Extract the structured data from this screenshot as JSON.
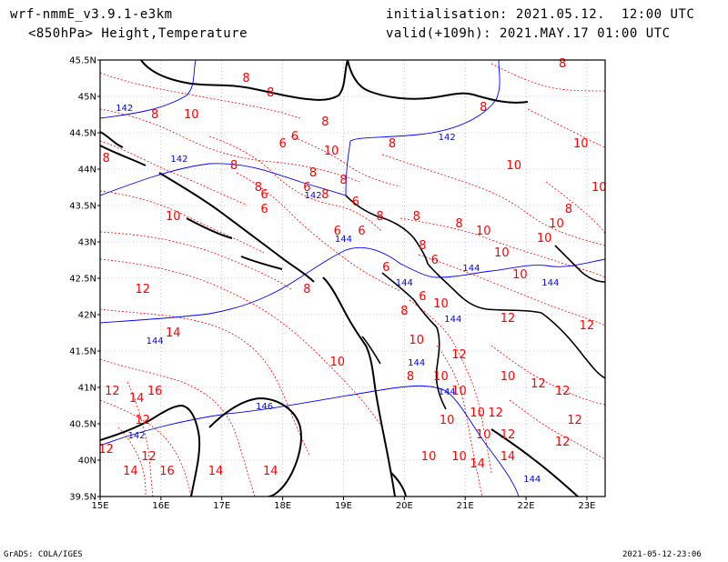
{
  "header": {
    "model": "wrf-nmmE_v3.9.1-e3km",
    "field": "<850hPa> Height,Temperature",
    "init": "initialisation: 2021.05.12.  12:00 UTC",
    "valid": "valid(+109h): 2021.MAY.17 01:00 UTC"
  },
  "footer": {
    "left": "GrADS: COLA/IGES",
    "right": "2021-05-12-23:06"
  },
  "map": {
    "lon_labels": [
      "15E",
      "16E",
      "17E",
      "18E",
      "19E",
      "20E",
      "21E",
      "22E",
      "23E"
    ],
    "lat_labels": [
      "45.5N",
      "45N",
      "44.5N",
      "44N",
      "43.5N",
      "43N",
      "42.5N",
      "42N",
      "41.5N",
      "41N",
      "40.5N",
      "40N",
      "39.5N"
    ],
    "lon_range": [
      15,
      23.3
    ],
    "lat_range": [
      39.5,
      45.5
    ],
    "grid": true,
    "colors": {
      "coast": "#000000",
      "height_contour": "#0000ff",
      "temperature_contour": "#ff0000",
      "grid": "#999999"
    },
    "height_labels": [
      {
        "text": "142",
        "lon": 15.4,
        "lat": 44.8
      },
      {
        "text": "142",
        "lon": 20.7,
        "lat": 44.4
      },
      {
        "text": "142",
        "lon": 16.3,
        "lat": 44.1
      },
      {
        "text": "142",
        "lon": 18.5,
        "lat": 43.6
      },
      {
        "text": "144",
        "lon": 19.0,
        "lat": 43.0
      },
      {
        "text": "144",
        "lon": 21.1,
        "lat": 42.6
      },
      {
        "text": "144",
        "lon": 22.4,
        "lat": 42.4
      },
      {
        "text": "144",
        "lon": 20.0,
        "lat": 42.4
      },
      {
        "text": "144",
        "lon": 20.8,
        "lat": 41.9
      },
      {
        "text": "144",
        "lon": 15.9,
        "lat": 41.6
      },
      {
        "text": "146",
        "lon": 17.7,
        "lat": 40.7
      },
      {
        "text": "144",
        "lon": 20.7,
        "lat": 40.9
      },
      {
        "text": "144",
        "lon": 22.1,
        "lat": 39.7
      },
      {
        "text": "142",
        "lon": 15.6,
        "lat": 40.3
      },
      {
        "text": "144",
        "lon": 20.2,
        "lat": 41.3
      }
    ],
    "temperature_labels": [
      {
        "text": "8",
        "lon": 17.4,
        "lat": 45.2
      },
      {
        "text": "8",
        "lon": 17.8,
        "lat": 45.0
      },
      {
        "text": "10",
        "lon": 16.5,
        "lat": 44.7
      },
      {
        "text": "8",
        "lon": 15.9,
        "lat": 44.7
      },
      {
        "text": "8",
        "lon": 18.7,
        "lat": 44.6
      },
      {
        "text": "6",
        "lon": 18.0,
        "lat": 44.3
      },
      {
        "text": "6",
        "lon": 18.2,
        "lat": 44.4
      },
      {
        "text": "10",
        "lon": 18.8,
        "lat": 44.2
      },
      {
        "text": "8",
        "lon": 19.8,
        "lat": 44.3
      },
      {
        "text": "8",
        "lon": 15.1,
        "lat": 44.1
      },
      {
        "text": "8",
        "lon": 17.2,
        "lat": 44.0
      },
      {
        "text": "8",
        "lon": 18.5,
        "lat": 43.9
      },
      {
        "text": "8",
        "lon": 19.0,
        "lat": 43.8
      },
      {
        "text": "6",
        "lon": 18.4,
        "lat": 43.7
      },
      {
        "text": "8",
        "lon": 17.6,
        "lat": 43.7
      },
      {
        "text": "6",
        "lon": 17.7,
        "lat": 43.6
      },
      {
        "text": "8",
        "lon": 18.7,
        "lat": 43.6
      },
      {
        "text": "6",
        "lon": 19.2,
        "lat": 43.5
      },
      {
        "text": "10",
        "lon": 16.2,
        "lat": 43.3
      },
      {
        "text": "8",
        "lon": 19.6,
        "lat": 43.3
      },
      {
        "text": "6",
        "lon": 17.7,
        "lat": 43.4
      },
      {
        "text": "6",
        "lon": 18.9,
        "lat": 43.1
      },
      {
        "text": "6",
        "lon": 19.3,
        "lat": 43.1
      },
      {
        "text": "8",
        "lon": 20.2,
        "lat": 43.3
      },
      {
        "text": "10",
        "lon": 21.3,
        "lat": 43.1
      },
      {
        "text": "8",
        "lon": 20.9,
        "lat": 43.2
      },
      {
        "text": "10",
        "lon": 21.6,
        "lat": 42.8
      },
      {
        "text": "10",
        "lon": 22.3,
        "lat": 43.0
      },
      {
        "text": "8",
        "lon": 20.3,
        "lat": 42.9
      },
      {
        "text": "6",
        "lon": 20.5,
        "lat": 42.7
      },
      {
        "text": "12",
        "lon": 15.7,
        "lat": 42.3
      },
      {
        "text": "8",
        "lon": 18.4,
        "lat": 42.3
      },
      {
        "text": "6",
        "lon": 19.7,
        "lat": 42.6
      },
      {
        "text": "6",
        "lon": 20.3,
        "lat": 42.2
      },
      {
        "text": "10",
        "lon": 21.9,
        "lat": 42.5
      },
      {
        "text": "10",
        "lon": 20.6,
        "lat": 42.1
      },
      {
        "text": "8",
        "lon": 20.0,
        "lat": 42.0
      },
      {
        "text": "12",
        "lon": 21.7,
        "lat": 41.9
      },
      {
        "text": "14",
        "lon": 16.2,
        "lat": 41.7
      },
      {
        "text": "10",
        "lon": 18.9,
        "lat": 41.3
      },
      {
        "text": "12",
        "lon": 20.9,
        "lat": 41.4
      },
      {
        "text": "10",
        "lon": 21.7,
        "lat": 41.1
      },
      {
        "text": "12",
        "lon": 15.2,
        "lat": 40.9
      },
      {
        "text": "14",
        "lon": 15.6,
        "lat": 40.8
      },
      {
        "text": "16",
        "lon": 15.9,
        "lat": 40.9
      },
      {
        "text": "12",
        "lon": 15.7,
        "lat": 40.5
      },
      {
        "text": "12",
        "lon": 15.8,
        "lat": 40.0
      },
      {
        "text": "16",
        "lon": 16.1,
        "lat": 39.8
      },
      {
        "text": "14",
        "lon": 15.5,
        "lat": 39.8
      },
      {
        "text": "14",
        "lon": 16.9,
        "lat": 39.8
      },
      {
        "text": "14",
        "lon": 17.8,
        "lat": 39.8
      },
      {
        "text": "10",
        "lon": 20.4,
        "lat": 40.0
      },
      {
        "text": "10",
        "lon": 20.9,
        "lat": 40.0
      },
      {
        "text": "10",
        "lon": 21.3,
        "lat": 40.3
      },
      {
        "text": "12",
        "lon": 22.6,
        "lat": 40.2
      },
      {
        "text": "14",
        "lon": 21.7,
        "lat": 40.0
      },
      {
        "text": "12",
        "lon": 21.5,
        "lat": 40.6
      },
      {
        "text": "12",
        "lon": 22.6,
        "lat": 40.9
      },
      {
        "text": "10",
        "lon": 21.2,
        "lat": 40.6
      },
      {
        "text": "8",
        "lon": 20.1,
        "lat": 41.1
      },
      {
        "text": "10",
        "lon": 20.6,
        "lat": 41.1
      },
      {
        "text": "12",
        "lon": 21.7,
        "lat": 40.3
      },
      {
        "text": "12",
        "lon": 15.1,
        "lat": 40.1
      },
      {
        "text": "10",
        "lon": 20.2,
        "lat": 41.6
      },
      {
        "text": "8",
        "lon": 22.6,
        "lat": 45.4
      },
      {
        "text": "8",
        "lon": 21.3,
        "lat": 44.8
      },
      {
        "text": "10",
        "lon": 22.9,
        "lat": 44.3
      },
      {
        "text": "10",
        "lon": 21.8,
        "lat": 44.0
      },
      {
        "text": "10",
        "lon": 23.2,
        "lat": 43.7
      },
      {
        "text": "8",
        "lon": 22.7,
        "lat": 43.4
      },
      {
        "text": "10",
        "lon": 22.5,
        "lat": 43.2
      },
      {
        "text": "12",
        "lon": 23.0,
        "lat": 41.8
      },
      {
        "text": "12",
        "lon": 22.8,
        "lat": 40.5
      },
      {
        "text": "10",
        "lon": 20.9,
        "lat": 40.9
      },
      {
        "text": "10",
        "lon": 20.7,
        "lat": 40.5
      },
      {
        "text": "12",
        "lon": 22.2,
        "lat": 41.0
      },
      {
        "text": "14",
        "lon": 21.2,
        "lat": 39.9
      }
    ]
  }
}
